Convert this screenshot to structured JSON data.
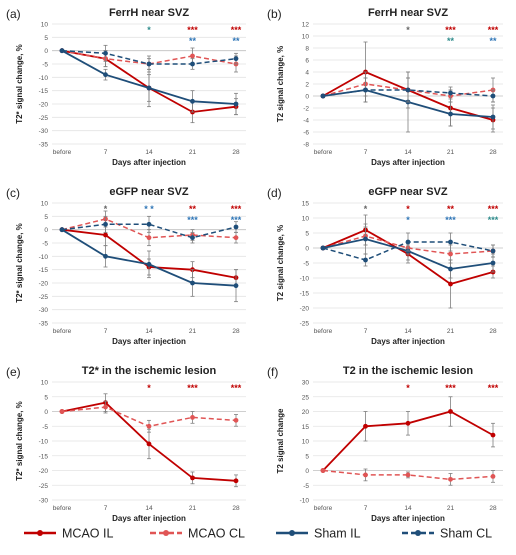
{
  "colors": {
    "mcao": "#c00000",
    "mcao_cl": "#e05555",
    "sham": "#1f4e79",
    "sham_cl": "#1f4e79",
    "star_red": "#c00000",
    "star_blue": "#2e75b6",
    "star_teal": "#2e8b8b",
    "star_gray": "#666666"
  },
  "legend": [
    {
      "label": "MCAO IL",
      "series": "mcao_il"
    },
    {
      "label": "MCAO CL",
      "series": "mcao_cl"
    },
    {
      "label": "Sham IL",
      "series": "sham_il"
    },
    {
      "label": "Sham CL",
      "series": "sham_cl"
    }
  ],
  "chart_data": [
    {
      "type": "line",
      "panel_label": "(a)",
      "title": "FerrH near SVZ",
      "xlabel": "Days after injection",
      "ylabel": "T2* signal change, %",
      "categories": [
        "before",
        "7",
        "14",
        "21",
        "28"
      ],
      "ylim": [
        -35,
        10
      ],
      "yticks": [
        10,
        5,
        0,
        -5,
        -10,
        -15,
        -20,
        -25,
        -30,
        -35
      ],
      "series": [
        {
          "key": "mcao_il",
          "name": "MCAO IL",
          "values": [
            0,
            -3,
            -14,
            -23,
            -21
          ],
          "err": [
            0,
            3,
            5,
            4,
            3
          ]
        },
        {
          "key": "mcao_cl",
          "name": "MCAO CL",
          "values": [
            0,
            -3,
            -5,
            -2,
            -5
          ],
          "err": [
            0,
            3,
            2,
            3,
            3
          ]
        },
        {
          "key": "sham_il",
          "name": "Sham IL",
          "values": [
            0,
            -9,
            -14,
            -19,
            -20
          ],
          "err": [
            0,
            2,
            7,
            4,
            4
          ]
        },
        {
          "key": "sham_cl",
          "name": "Sham CL",
          "values": [
            0,
            -1,
            -5,
            -5,
            -3
          ],
          "err": [
            0,
            3,
            3,
            2,
            2
          ]
        }
      ],
      "stars": [
        {
          "x": 2,
          "rows": [
            {
              "text": "*",
              "color": "star_teal"
            }
          ]
        },
        {
          "x": 3,
          "rows": [
            {
              "text": "***",
              "color": "star_red"
            },
            {
              "text": "**",
              "color": "star_blue"
            }
          ]
        },
        {
          "x": 4,
          "rows": [
            {
              "text": "***",
              "color": "star_red"
            },
            {
              "text": "**",
              "color": "star_blue"
            }
          ]
        }
      ]
    },
    {
      "type": "line",
      "panel_label": "(b)",
      "title": "FerrH near SVZ",
      "xlabel": "Days after injection",
      "ylabel": "T2 signal change, %",
      "categories": [
        "before",
        "7",
        "14",
        "21",
        "28"
      ],
      "ylim": [
        -8,
        12
      ],
      "yticks": [
        12,
        10,
        8,
        6,
        4,
        2,
        0,
        -2,
        -4,
        -6,
        -8
      ],
      "series": [
        {
          "key": "mcao_il",
          "name": "MCAO IL",
          "values": [
            0,
            4,
            1,
            -2,
            -4
          ],
          "err": [
            0,
            5,
            3,
            3,
            2
          ]
        },
        {
          "key": "mcao_cl",
          "name": "MCAO CL",
          "values": [
            0,
            2,
            1,
            0,
            1
          ],
          "err": [
            0,
            2,
            2,
            1,
            2
          ]
        },
        {
          "key": "sham_il",
          "name": "Sham IL",
          "values": [
            0,
            1,
            -1,
            -3,
            -3.5
          ],
          "err": [
            0,
            2,
            5,
            2,
            2
          ]
        },
        {
          "key": "sham_cl",
          "name": "Sham CL",
          "values": [
            0,
            1,
            1,
            0.5,
            0
          ],
          "err": [
            0,
            2,
            2,
            1,
            1
          ]
        }
      ],
      "stars": [
        {
          "x": 2,
          "rows": [
            {
              "text": "*",
              "color": "star_gray"
            }
          ]
        },
        {
          "x": 3,
          "rows": [
            {
              "text": "***",
              "color": "star_red"
            },
            {
              "text": "**",
              "color": "star_teal"
            }
          ]
        },
        {
          "x": 4,
          "rows": [
            {
              "text": "***",
              "color": "star_red"
            },
            {
              "text": "**",
              "color": "star_blue"
            }
          ]
        }
      ]
    },
    {
      "type": "line",
      "panel_label": "(c)",
      "title": "eGFP near SVZ",
      "xlabel": "Days after injection",
      "ylabel": "T2* signal change, %",
      "categories": [
        "before",
        "7",
        "14",
        "21",
        "28"
      ],
      "ylim": [
        -35,
        10
      ],
      "yticks": [
        10,
        5,
        0,
        -5,
        -10,
        -15,
        -20,
        -25,
        -30,
        -35
      ],
      "series": [
        {
          "key": "mcao_il",
          "name": "MCAO IL",
          "values": [
            0,
            -2,
            -14,
            -15,
            -18
          ],
          "err": [
            0,
            4,
            3,
            3,
            3
          ]
        },
        {
          "key": "mcao_cl",
          "name": "MCAO CL",
          "values": [
            0,
            4,
            -3,
            -2,
            -3
          ],
          "err": [
            0,
            3,
            3,
            2,
            2
          ]
        },
        {
          "key": "sham_il",
          "name": "Sham IL",
          "values": [
            0,
            -10,
            -13,
            -20,
            -21
          ],
          "err": [
            0,
            4,
            5,
            5,
            6
          ]
        },
        {
          "key": "sham_cl",
          "name": "Sham CL",
          "values": [
            0,
            2,
            2,
            -3,
            1
          ],
          "err": [
            0,
            3,
            3,
            2,
            2
          ]
        }
      ],
      "stars": [
        {
          "x": 1,
          "rows": [
            {
              "text": "*",
              "color": "star_gray"
            }
          ]
        },
        {
          "x": 2,
          "rows": [
            {
              "text": "* *",
              "color": "star_blue"
            }
          ]
        },
        {
          "x": 3,
          "rows": [
            {
              "text": "**",
              "color": "star_red"
            },
            {
              "text": "***",
              "color": "star_blue"
            }
          ]
        },
        {
          "x": 4,
          "rows": [
            {
              "text": "***",
              "color": "star_red"
            },
            {
              "text": "***",
              "color": "star_blue"
            }
          ]
        }
      ]
    },
    {
      "type": "line",
      "panel_label": "(d)",
      "title": "eGFP near SVZ",
      "xlabel": "Days after injection",
      "ylabel": "T2 signal change, %",
      "categories": [
        "before",
        "7",
        "14",
        "21",
        "28"
      ],
      "ylim": [
        -25,
        15
      ],
      "yticks": [
        15,
        10,
        5,
        0,
        -5,
        -10,
        -15,
        -20,
        -25
      ],
      "series": [
        {
          "key": "mcao_il",
          "name": "MCAO IL",
          "values": [
            0,
            6,
            -2,
            -12,
            -8
          ],
          "err": [
            0,
            5,
            3,
            8,
            2
          ]
        },
        {
          "key": "mcao_cl",
          "name": "MCAO CL",
          "values": [
            0,
            4,
            0,
            -2,
            -1
          ],
          "err": [
            0,
            3,
            2,
            3,
            2
          ]
        },
        {
          "key": "sham_il",
          "name": "Sham IL",
          "values": [
            0,
            3,
            -1,
            -7,
            -5
          ],
          "err": [
            0,
            5,
            3,
            3,
            3
          ]
        },
        {
          "key": "sham_cl",
          "name": "Sham CL",
          "values": [
            0,
            -4,
            2,
            2,
            -1
          ],
          "err": [
            0,
            2,
            3,
            3,
            2
          ]
        }
      ],
      "stars": [
        {
          "x": 1,
          "rows": [
            {
              "text": "*",
              "color": "star_gray"
            }
          ]
        },
        {
          "x": 2,
          "rows": [
            {
              "text": "*",
              "color": "star_red"
            },
            {
              "text": "*",
              "color": "star_blue"
            }
          ]
        },
        {
          "x": 3,
          "rows": [
            {
              "text": "**",
              "color": "star_red"
            },
            {
              "text": "***",
              "color": "star_blue"
            }
          ]
        },
        {
          "x": 4,
          "rows": [
            {
              "text": "***",
              "color": "star_red"
            },
            {
              "text": "***",
              "color": "star_teal"
            }
          ]
        }
      ]
    },
    {
      "type": "line",
      "panel_label": "(e)",
      "title": "T2* in the ischemic lesion",
      "xlabel": "Days after injection",
      "ylabel": "T2* signal change, %",
      "categories": [
        "before",
        "7",
        "14",
        "21",
        "28"
      ],
      "ylim": [
        -30,
        10
      ],
      "yticks": [
        10,
        5,
        0,
        -5,
        -10,
        -15,
        -20,
        -25,
        -30
      ],
      "series": [
        {
          "key": "mcao_il",
          "name": "MCAO IL",
          "values": [
            0,
            3,
            -11,
            -22.5,
            -23.5
          ],
          "err": [
            0,
            3,
            5,
            2,
            2
          ]
        },
        {
          "key": "mcao_cl",
          "name": "MCAO CL",
          "values": [
            0,
            1.5,
            -5,
            -2,
            -3
          ],
          "err": [
            0,
            2,
            2,
            2,
            2
          ]
        }
      ],
      "stars": [
        {
          "x": 2,
          "rows": [
            {
              "text": "*",
              "color": "star_red"
            }
          ]
        },
        {
          "x": 3,
          "rows": [
            {
              "text": "***",
              "color": "star_red"
            }
          ]
        },
        {
          "x": 4,
          "rows": [
            {
              "text": "***",
              "color": "star_red"
            }
          ]
        }
      ]
    },
    {
      "type": "line",
      "panel_label": "(f)",
      "title": "T2 in the ischemic lesion",
      "xlabel": "Days after injection",
      "ylabel": "T2 signal change",
      "categories": [
        "before",
        "7",
        "14",
        "21",
        "28"
      ],
      "ylim": [
        -10,
        30
      ],
      "yticks": [
        30,
        25,
        20,
        15,
        10,
        5,
        0,
        -5,
        -10
      ],
      "series": [
        {
          "key": "mcao_il",
          "name": "MCAO IL",
          "values": [
            0,
            15,
            16,
            20,
            12
          ],
          "err": [
            0,
            5,
            4,
            5,
            4
          ]
        },
        {
          "key": "mcao_cl",
          "name": "MCAO CL",
          "values": [
            0,
            -1.5,
            -1.5,
            -3,
            -2
          ],
          "err": [
            0,
            2,
            1,
            2,
            2
          ]
        }
      ],
      "stars": [
        {
          "x": 2,
          "rows": [
            {
              "text": "*",
              "color": "star_red"
            }
          ]
        },
        {
          "x": 3,
          "rows": [
            {
              "text": "***",
              "color": "star_red"
            }
          ]
        },
        {
          "x": 4,
          "rows": [
            {
              "text": "***",
              "color": "star_red"
            }
          ]
        }
      ]
    }
  ]
}
